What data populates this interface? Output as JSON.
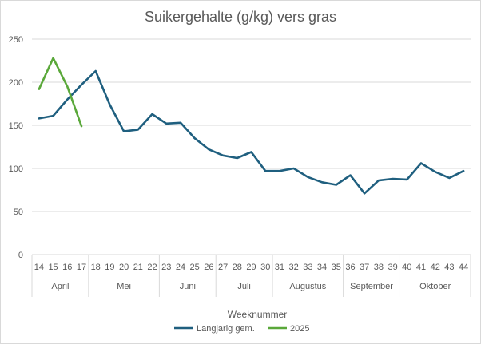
{
  "chart_data": {
    "type": "line",
    "title": "Suikergehalte (g/kg) vers gras",
    "xlabel": "Weeknummer",
    "ylabel": "",
    "ylim": [
      0,
      250
    ],
    "yticks": [
      0,
      50,
      100,
      150,
      200,
      250
    ],
    "grid": true,
    "legend": "bottom",
    "categories": [
      "14",
      "15",
      "16",
      "17",
      "18",
      "19",
      "20",
      "21",
      "22",
      "23",
      "24",
      "25",
      "26",
      "27",
      "28",
      "29",
      "30",
      "31",
      "32",
      "33",
      "34",
      "35",
      "36",
      "37",
      "38",
      "39",
      "40",
      "41",
      "42",
      "43",
      "44"
    ],
    "month_groups": [
      {
        "label": "April",
        "weeks": [
          "14",
          "15",
          "16",
          "17"
        ]
      },
      {
        "label": "Mei",
        "weeks": [
          "18",
          "19",
          "20",
          "21",
          "22"
        ]
      },
      {
        "label": "Juni",
        "weeks": [
          "23",
          "24",
          "25",
          "26"
        ]
      },
      {
        "label": "Juli",
        "weeks": [
          "27",
          "28",
          "29",
          "30"
        ]
      },
      {
        "label": "Augustus",
        "weeks": [
          "31",
          "32",
          "33",
          "34",
          "35"
        ]
      },
      {
        "label": "September",
        "weeks": [
          "36",
          "37",
          "38",
          "39"
        ]
      },
      {
        "label": "Oktober",
        "weeks": [
          "40",
          "41",
          "42",
          "43",
          "44"
        ]
      }
    ],
    "series": [
      {
        "name": "Langjarig gem.",
        "color": "#1f5f7f",
        "values": [
          158,
          161,
          180,
          197,
          213,
          174,
          143,
          145,
          163,
          152,
          153,
          135,
          122,
          115,
          112,
          119,
          97,
          97,
          100,
          90,
          84,
          81,
          92,
          71,
          86,
          88,
          87,
          106,
          96,
          89,
          97
        ]
      },
      {
        "name": "2025",
        "color": "#5aa83a",
        "values": [
          192,
          228,
          195,
          149,
          null,
          null,
          null,
          null,
          null,
          null,
          null,
          null,
          null,
          null,
          null,
          null,
          null,
          null,
          null,
          null,
          null,
          null,
          null,
          null,
          null,
          null,
          null,
          null,
          null,
          null,
          null
        ]
      }
    ]
  }
}
